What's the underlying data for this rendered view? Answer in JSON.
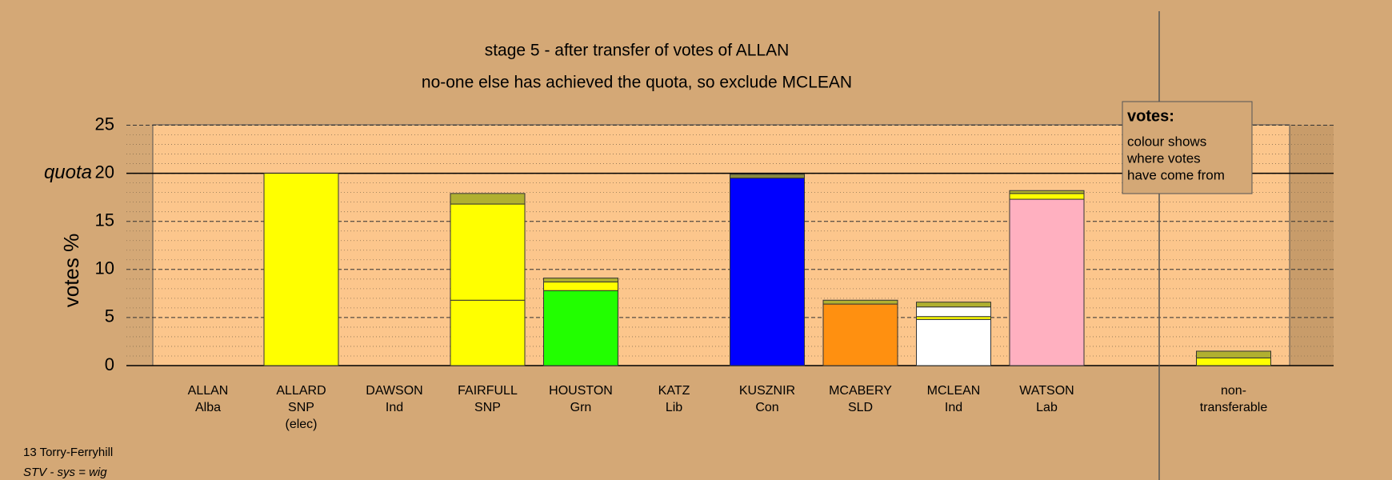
{
  "chart_data": {
    "type": "stacked-bar",
    "title": "stage 5 - after transfer of votes of ALLAN",
    "subtitle": "no-one else has achieved the quota, so exclude MCLEAN",
    "ylabel": "votes %",
    "quota_label": "quota",
    "quota": 20,
    "ylim": [
      0,
      25
    ],
    "yticks": [
      0,
      5,
      10,
      15,
      20,
      25
    ],
    "categories": [
      [
        "ALLAN",
        "Alba"
      ],
      [
        "ALLARD",
        "SNP",
        "(elec)"
      ],
      [
        "DAWSON",
        "Ind"
      ],
      [
        "FAIRFULL",
        "SNP"
      ],
      [
        "HOUSTON",
        "Grn"
      ],
      [
        "KATZ",
        "Lib"
      ],
      [
        "KUSZNIR",
        "Con"
      ],
      [
        "MCABERY",
        "SLD"
      ],
      [
        "MCLEAN",
        "Ind"
      ],
      [
        "WATSON",
        "Lab"
      ],
      [
        "non-",
        "transferable"
      ]
    ],
    "stacks": [
      [
        {
          "value": 0,
          "color": "#333333"
        }
      ],
      [
        {
          "value": 20,
          "color": "#ffff00"
        }
      ],
      [
        {
          "value": 0,
          "color": "#333333"
        }
      ],
      [
        {
          "value": 6.8,
          "color": "#ffff00"
        },
        {
          "value": 10.0,
          "color": "#ffff00"
        },
        {
          "value": 1.1,
          "color": "#b0b030"
        }
      ],
      [
        {
          "value": 7.8,
          "color": "#22ff00"
        },
        {
          "value": 0.9,
          "color": "#ffff00"
        },
        {
          "value": 0.4,
          "color": "#b0b030"
        }
      ],
      [
        {
          "value": 0,
          "color": "#333333"
        }
      ],
      [
        {
          "value": 19.5,
          "color": "#0000ff"
        },
        {
          "value": 0.4,
          "color": "#8a8a40"
        }
      ],
      [
        {
          "value": 6.4,
          "color": "#ff9010"
        },
        {
          "value": 0.4,
          "color": "#b0b030"
        }
      ],
      [
        {
          "value": 4.8,
          "color": "#ffffff"
        },
        {
          "value": 0.3,
          "color": "#ffff00"
        },
        {
          "value": 1.0,
          "color": "#ffffff"
        },
        {
          "value": 0.5,
          "color": "#b0b030"
        }
      ],
      [
        {
          "value": 17.3,
          "color": "#ffb0c0"
        },
        {
          "value": 0.6,
          "color": "#ffff00"
        },
        {
          "value": 0.3,
          "color": "#b0b030"
        }
      ],
      [
        {
          "value": 0.8,
          "color": "#ffff00"
        },
        {
          "value": 0.7,
          "color": "#b0b030"
        }
      ]
    ],
    "legend": {
      "title": "votes:",
      "lines": [
        "colour shows",
        "where votes",
        "have come from"
      ]
    },
    "footer": [
      "13 Torry-Ferryhill",
      "STV - sys = wig"
    ]
  }
}
